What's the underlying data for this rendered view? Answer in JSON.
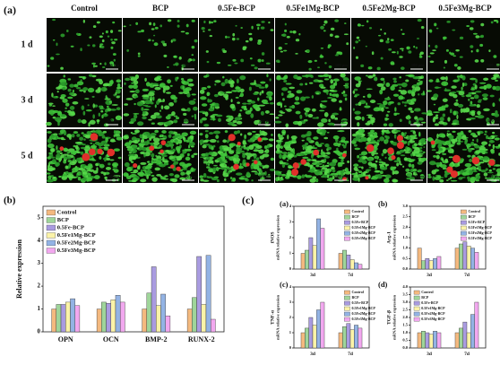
{
  "panel_a": {
    "label": "(a)",
    "columns": [
      "Control",
      "BCP",
      "0.5Fe-BCP",
      "0.5Fe1Mg-BCP",
      "0.5Fe2Mg-BCP",
      "0.5Fe3Mg-BCP"
    ],
    "rows": [
      "1 d",
      "3 d",
      "5 d"
    ],
    "scale_bar": "100 μm"
  },
  "panel_c": {
    "label": "(c)"
  },
  "chart_data": [
    {
      "type": "bar",
      "panel_label": "(b)",
      "ylabel": [
        "Relative expression"
      ],
      "categories": [
        "OPN",
        "OCN",
        "BMP-2",
        "RUNX-2"
      ],
      "series": [
        {
          "name": "Control",
          "color": "#f4b97f",
          "values": [
            1.0,
            1.0,
            1.0,
            1.0
          ]
        },
        {
          "name": "BCP",
          "color": "#9fd59a",
          "values": [
            1.2,
            1.3,
            1.7,
            1.5
          ]
        },
        {
          "name": "0.5Fe-BCP",
          "color": "#a99be0",
          "values": [
            1.2,
            1.25,
            2.85,
            3.3
          ]
        },
        {
          "name": "0.5Fe1Mg-BCP",
          "color": "#fbf3a8",
          "values": [
            1.3,
            1.4,
            1.15,
            1.2
          ]
        },
        {
          "name": "0.5Fe2Mg-BCP",
          "color": "#93b3e4",
          "values": [
            1.45,
            1.6,
            1.65,
            3.35
          ]
        },
        {
          "name": "0.5Fe3Mg-BCP",
          "color": "#f2a8ef",
          "values": [
            1.15,
            1.3,
            0.7,
            0.55
          ]
        }
      ],
      "ylim": [
        0,
        5.5
      ],
      "yticks": [
        0,
        1,
        2,
        3,
        4,
        5
      ],
      "legend": "upper left"
    },
    {
      "type": "bar",
      "panel_label": "(a)",
      "ylabel": [
        "iNOS",
        "mRNA relative expression"
      ],
      "categories": [
        "3d",
        "7d"
      ],
      "series": [
        {
          "name": "Control",
          "color": "#f4b97f",
          "values": [
            1.0,
            1.0
          ]
        },
        {
          "name": "BCP",
          "color": "#9fd59a",
          "values": [
            1.2,
            1.2
          ]
        },
        {
          "name": "0.5Fe-BCP",
          "color": "#a99be0",
          "values": [
            2.0,
            0.9
          ]
        },
        {
          "name": "0.5Fe1Mg-BCP",
          "color": "#fbf3a8",
          "values": [
            1.5,
            0.6
          ]
        },
        {
          "name": "0.5Fe2Mg-BCP",
          "color": "#93b3e4",
          "values": [
            3.2,
            0.4
          ]
        },
        {
          "name": "0.5Fe3Mg-BCP",
          "color": "#f2a8ef",
          "values": [
            2.6,
            0.3
          ]
        }
      ],
      "ylim": [
        0,
        4
      ],
      "yticks": [
        0,
        1,
        2,
        3,
        4
      ],
      "legend": "upper right"
    },
    {
      "type": "bar",
      "panel_label": "(b)",
      "ylabel": [
        "Arg-1",
        "mRNA relative expression"
      ],
      "categories": [
        "3d",
        "7d"
      ],
      "series": [
        {
          "name": "Control",
          "color": "#f4b97f",
          "values": [
            1.0,
            1.0
          ]
        },
        {
          "name": "BCP",
          "color": "#9fd59a",
          "values": [
            0.4,
            1.2
          ]
        },
        {
          "name": "0.5Fe-BCP",
          "color": "#a99be0",
          "values": [
            0.5,
            1.3
          ]
        },
        {
          "name": "0.5Fe1Mg-BCP",
          "color": "#fbf3a8",
          "values": [
            0.4,
            1.1
          ]
        },
        {
          "name": "0.5Fe2Mg-BCP",
          "color": "#93b3e4",
          "values": [
            0.5,
            1.0
          ]
        },
        {
          "name": "0.5Fe3Mg-BCP",
          "color": "#f2a8ef",
          "values": [
            0.6,
            0.8
          ]
        }
      ],
      "ylim": [
        0,
        3
      ],
      "yticks": [
        {
          "value": 0,
          "label": "0.0"
        },
        {
          "value": 0.5,
          "label": "0.5"
        },
        {
          "value": 1,
          "label": "1.0"
        },
        {
          "value": 1.5,
          "label": "1.5"
        },
        {
          "value": 2,
          "label": "2.0"
        },
        {
          "value": 2.5,
          "label": "2.5"
        },
        {
          "value": 3,
          "label": "3.0"
        }
      ],
      "legend": "upper right"
    },
    {
      "type": "bar",
      "panel_label": "(c)",
      "ylabel": [
        "TNF-α",
        "mRNA relative expression"
      ],
      "categories": [
        "3d",
        "7d"
      ],
      "series": [
        {
          "name": "Control",
          "color": "#f4b97f",
          "values": [
            1.0,
            1.0
          ]
        },
        {
          "name": "BCP",
          "color": "#9fd59a",
          "values": [
            1.3,
            1.4
          ]
        },
        {
          "name": "0.5Fe-BCP",
          "color": "#a99be0",
          "values": [
            2.0,
            1.6
          ]
        },
        {
          "name": "0.5Fe1Mg-BCP",
          "color": "#fbf3a8",
          "values": [
            1.5,
            1.2
          ]
        },
        {
          "name": "0.5Fe2Mg-BCP",
          "color": "#93b3e4",
          "values": [
            2.5,
            1.5
          ]
        },
        {
          "name": "0.5Fe3Mg-BCP",
          "color": "#f2a8ef",
          "values": [
            3.0,
            1.3
          ]
        }
      ],
      "ylim": [
        0,
        4
      ],
      "yticks": [
        0,
        1,
        2,
        3,
        4
      ],
      "legend": "upper right"
    },
    {
      "type": "bar",
      "panel_label": "(d)",
      "ylabel": [
        "TGF-β",
        "mRNA relative expression"
      ],
      "categories": [
        "3d",
        "7d"
      ],
      "series": [
        {
          "name": "Control",
          "color": "#f4b97f",
          "values": [
            1.0,
            1.0
          ]
        },
        {
          "name": "BCP",
          "color": "#9fd59a",
          "values": [
            1.1,
            1.3
          ]
        },
        {
          "name": "0.5Fe-BCP",
          "color": "#a99be0",
          "values": [
            1.0,
            1.7
          ]
        },
        {
          "name": "0.5Fe1Mg-BCP",
          "color": "#fbf3a8",
          "values": [
            0.9,
            1.0
          ]
        },
        {
          "name": "0.5Fe2Mg-BCP",
          "color": "#93b3e4",
          "values": [
            1.1,
            2.2
          ]
        },
        {
          "name": "0.5Fe3Mg-BCP",
          "color": "#f2a8ef",
          "values": [
            1.0,
            3.0
          ]
        }
      ],
      "ylim": [
        0,
        4
      ],
      "yticks": [
        {
          "value": 0,
          "label": "0.0"
        },
        {
          "value": 0.5,
          "label": "0.5"
        },
        {
          "value": 1,
          "label": "1.0"
        },
        {
          "value": 1.5,
          "label": "1.5"
        },
        {
          "value": 2,
          "label": "2.0"
        },
        {
          "value": 2.5,
          "label": "2.5"
        },
        {
          "value": 3,
          "label": "3.0"
        },
        {
          "value": 3.5,
          "label": "3.5"
        },
        {
          "value": 4,
          "label": "4.0"
        }
      ],
      "legend": "upper left"
    }
  ]
}
